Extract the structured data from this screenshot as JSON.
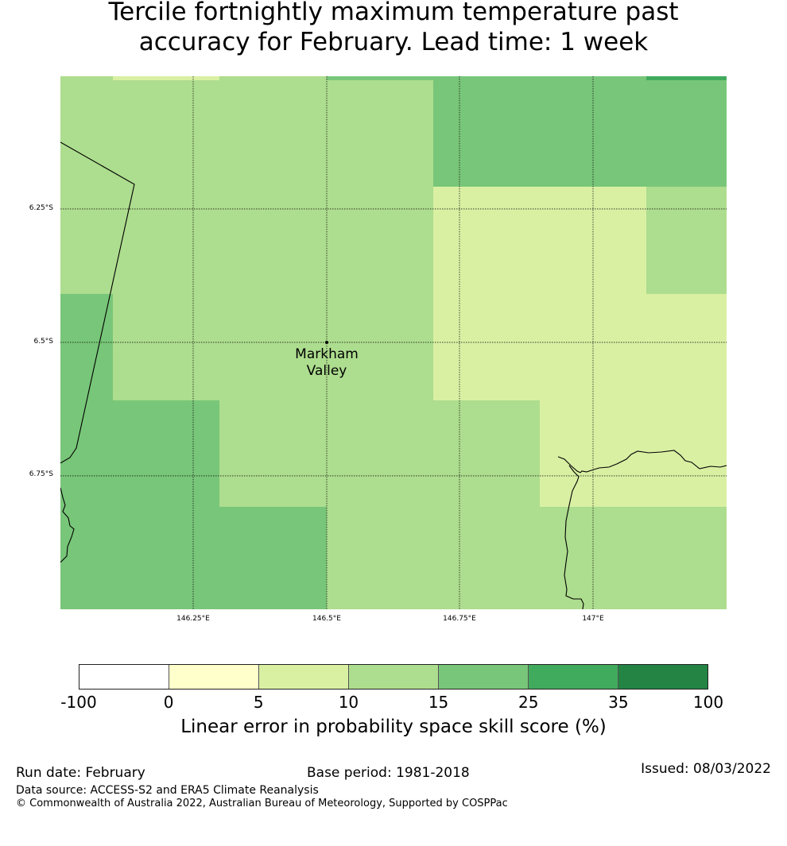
{
  "title_line1": "Tercile fortnightly maximum temperature past",
  "title_line2": "accuracy for February. Lead time: 1 week",
  "map": {
    "lat_labels": [
      "6.25°S",
      "6.5°S",
      "6.75°S"
    ],
    "lon_labels": [
      "146.25°E",
      "146.5°E",
      "146.75°E",
      "147°E"
    ],
    "place_name_line1": "Markham",
    "place_name_line2": "Valley"
  },
  "colorbar": {
    "colors": [
      "#ffffff",
      "#ffffcc",
      "#d9f0a3",
      "#addd8e",
      "#78c679",
      "#41ab5d",
      "#238443"
    ],
    "ticks": [
      "-100",
      "0",
      "5",
      "10",
      "15",
      "25",
      "35",
      "100"
    ],
    "label": "Linear error in probability space skill score (%)"
  },
  "footer": {
    "run_date": "Run date: February",
    "base_period": "Base period: 1981-2018",
    "issued": "Issued: 08/03/2022",
    "data_source": "Data source: ACCESS-S2 and ERA5 Climate Reanalysis",
    "copyright": "© Commonwealth of Australia 2022, Australian Bureau of Meteorology, Supported by COSPPac"
  }
}
